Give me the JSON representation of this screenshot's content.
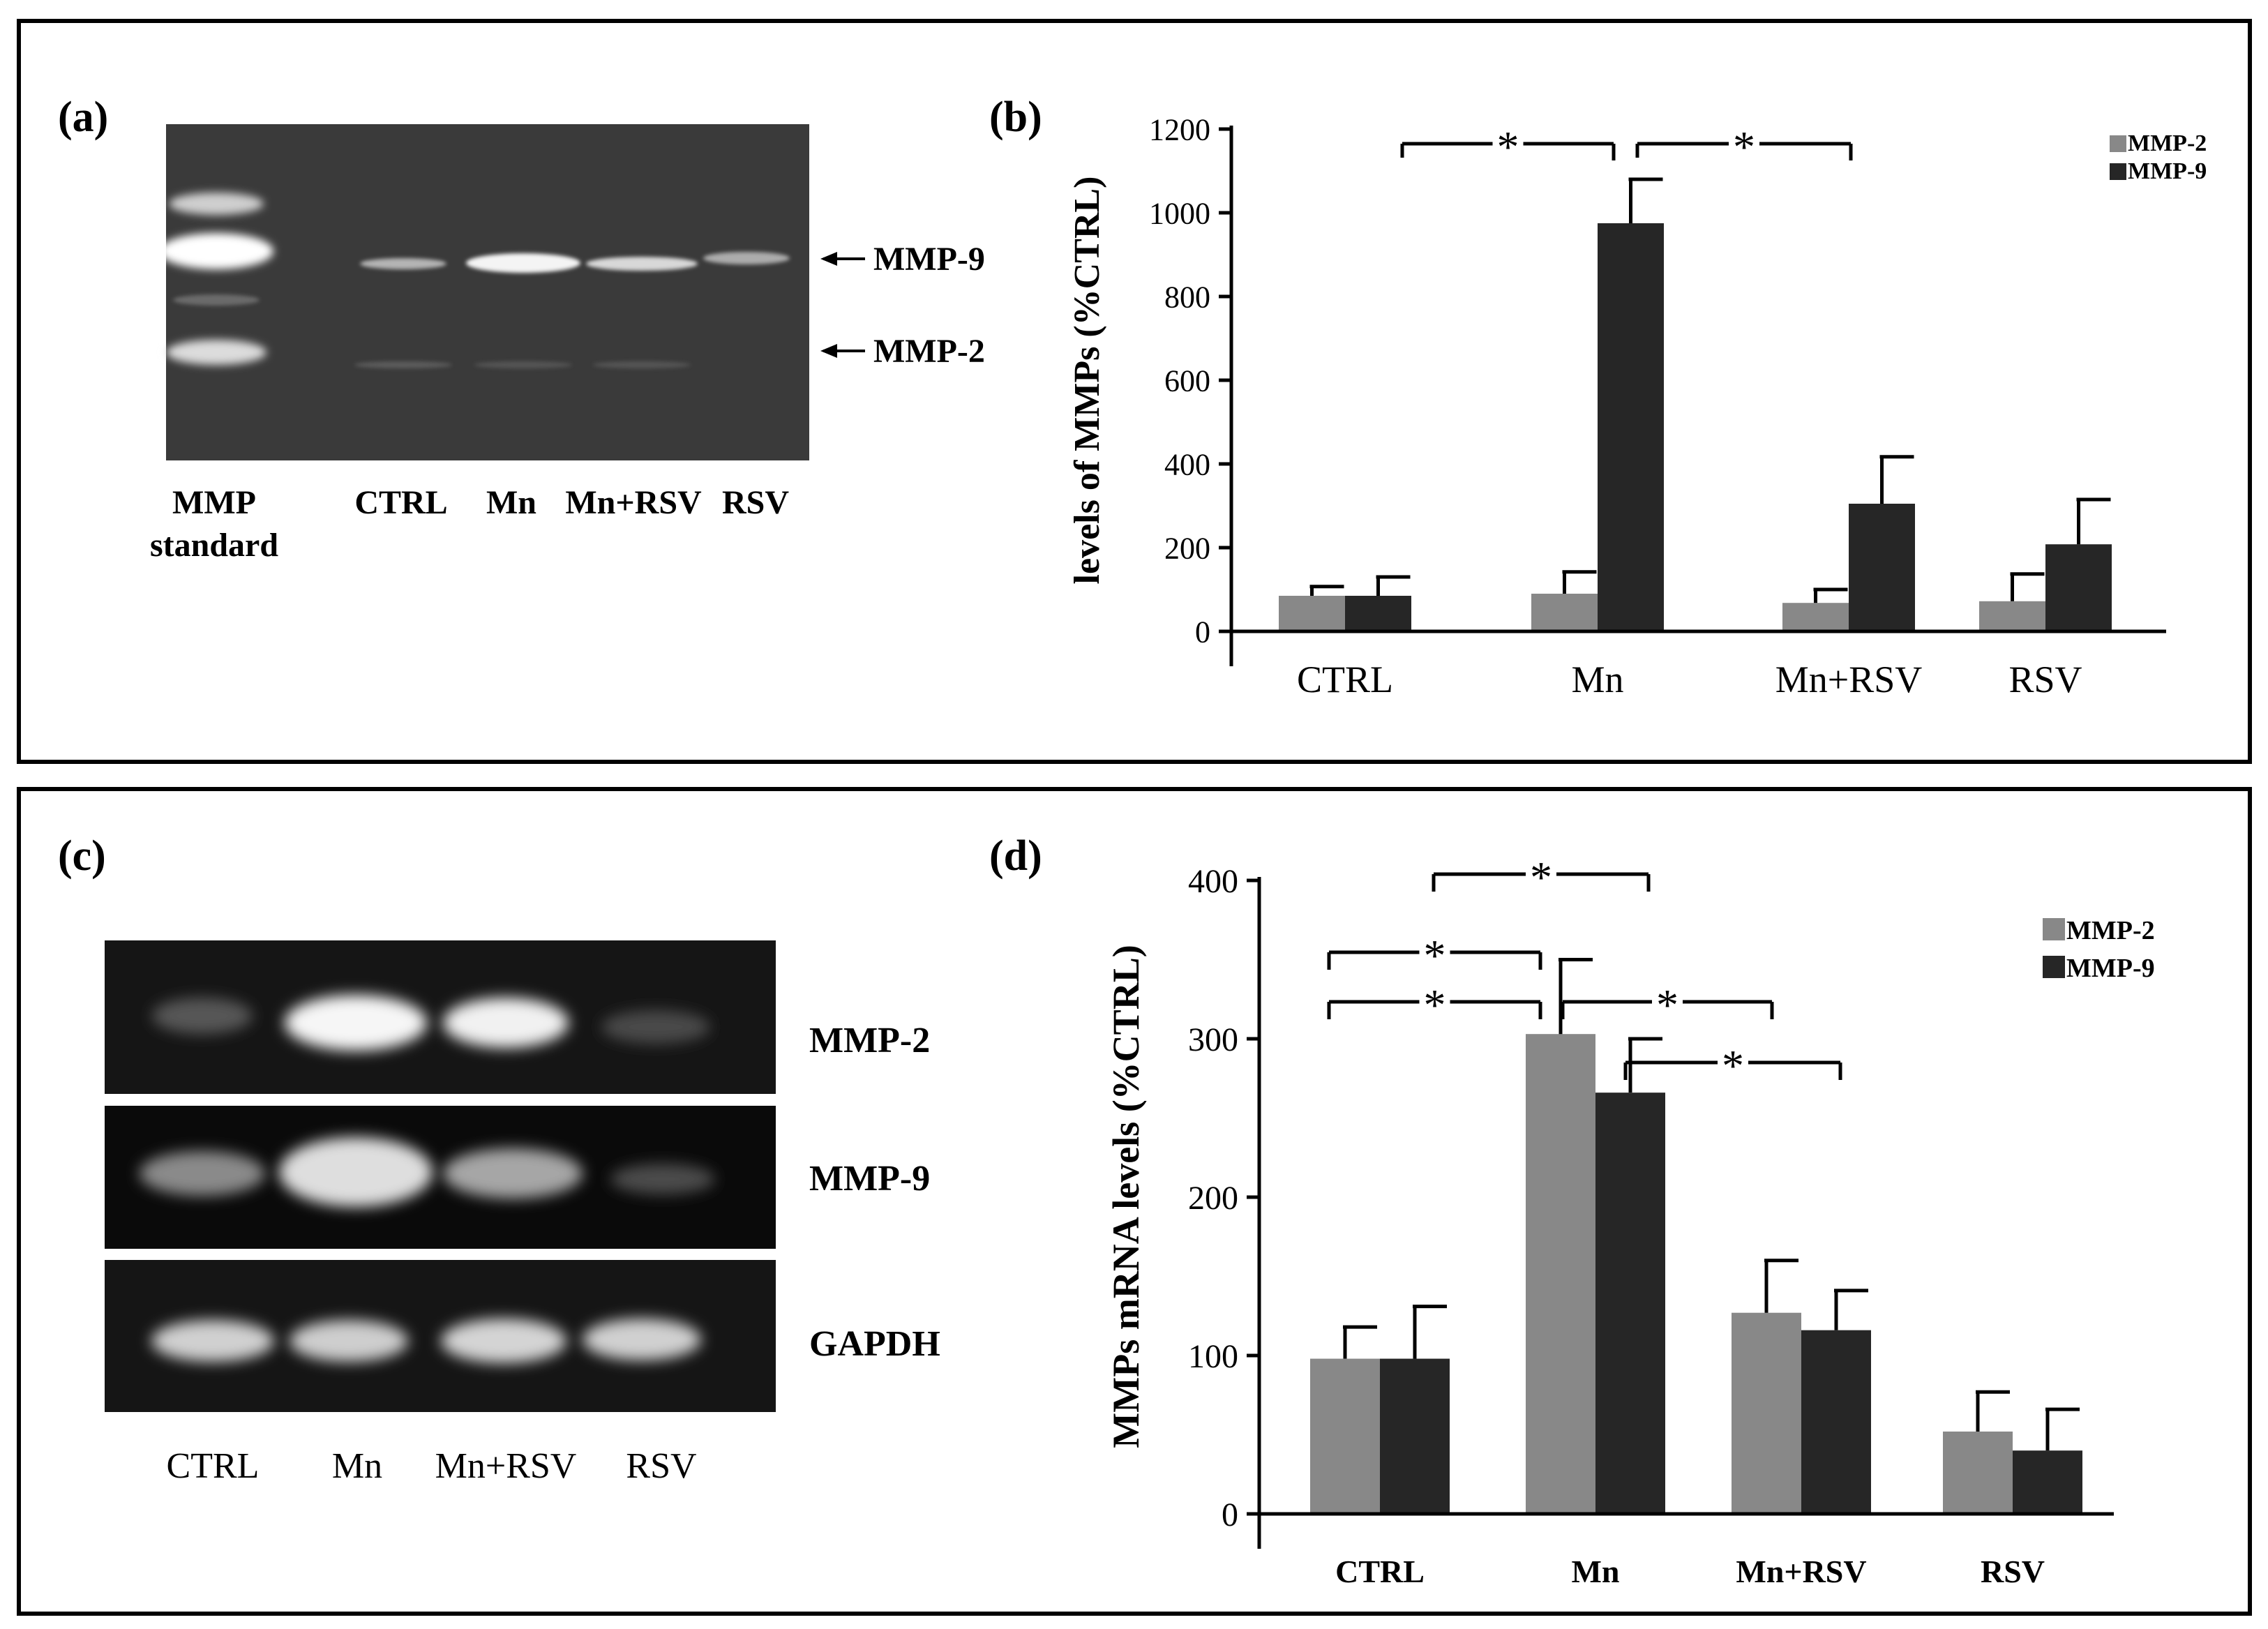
{
  "panel_labels": {
    "a": "(a)",
    "b": "(b)",
    "c": "(c)",
    "d": "(d)"
  },
  "gel_a": {
    "lanes": [
      "CTRL",
      "Mn",
      "Mn+RSV",
      "RSV"
    ],
    "standard_label_line1": "MMP",
    "standard_label_line2": "standard",
    "arrow_labels": [
      "MMP-9",
      "MMP-2"
    ]
  },
  "gel_c": {
    "lanes": [
      "CTRL",
      "Mn",
      "Mn+RSV",
      "RSV"
    ],
    "row_labels": [
      "MMP-2",
      "MMP-9",
      "GAPDH"
    ]
  },
  "significance_marker": "*",
  "colors": {
    "mmp2": "#888888",
    "mmp9": "#262626",
    "frame": "#000000"
  },
  "chart_data": [
    {
      "type": "bar",
      "panel": "(b)",
      "categories": [
        "CTRL",
        "Mn",
        "Mn+RSV",
        "RSV"
      ],
      "series": [
        {
          "name": "MMP-2",
          "values": [
            85,
            90,
            68,
            72
          ],
          "errors": [
            22,
            52,
            32,
            65
          ]
        },
        {
          "name": "MMP-9",
          "values": [
            85,
            975,
            305,
            208
          ],
          "errors": [
            45,
            105,
            112,
            107
          ]
        }
      ],
      "ylabel": "levels of MMPs (%CTRL)",
      "ylim": [
        0,
        1200
      ],
      "yticks": [
        0,
        200,
        400,
        600,
        800,
        1000,
        1200
      ],
      "legend": "top-right",
      "significance": [
        {
          "from": "CTRL",
          "to": "Mn",
          "label": "*"
        },
        {
          "from": "Mn",
          "to": "Mn+RSV",
          "label": "*"
        }
      ]
    },
    {
      "type": "bar",
      "panel": "(d)",
      "categories": [
        "CTRL",
        "Mn",
        "Mn+RSV",
        "RSV"
      ],
      "series": [
        {
          "name": "MMP-2",
          "values": [
            98,
            303,
            127,
            52
          ],
          "errors": [
            20,
            47,
            33,
            25
          ]
        },
        {
          "name": "MMP-9",
          "values": [
            98,
            266,
            116,
            40
          ],
          "errors": [
            33,
            34,
            25,
            26
          ]
        }
      ],
      "ylabel": "MMPs mRNA levels (%CTRL)",
      "ylim": [
        0,
        400
      ],
      "yticks": [
        0,
        100,
        200,
        300,
        400
      ],
      "legend": "top-right",
      "significance": [
        {
          "from": "CTRL",
          "to": "Mn",
          "label": "*"
        },
        {
          "from": "CTRL",
          "to": "Mn",
          "label": "*"
        },
        {
          "from": "Mn",
          "to": "Mn+RSV",
          "label": "*"
        },
        {
          "from": "Mn",
          "to": "Mn+RSV",
          "label": "*"
        },
        {
          "from": "Mn",
          "to": "RSV",
          "label": "*"
        }
      ]
    }
  ]
}
